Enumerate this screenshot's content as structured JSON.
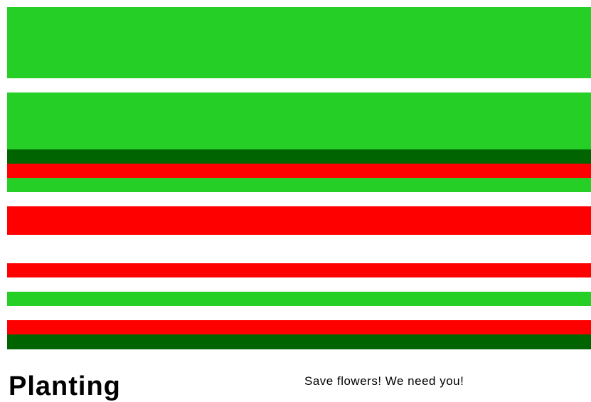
{
  "colors": {
    "light_green": "#26cf26",
    "dark_green": "#006400",
    "red": "#ff0000",
    "white": "#ffffff"
  },
  "stripes": [
    "light_green",
    "light_green",
    "light_green",
    "light_green",
    "light_green",
    "white",
    "light_green",
    "light_green",
    "light_green",
    "light_green",
    "dark_green",
    "red",
    "light_green",
    "white",
    "red",
    "red",
    "white",
    "white",
    "red",
    "white",
    "light_green",
    "white",
    "red",
    "dark_green"
  ],
  "title": "Planting",
  "tagline": "Save flowers! We need you!"
}
